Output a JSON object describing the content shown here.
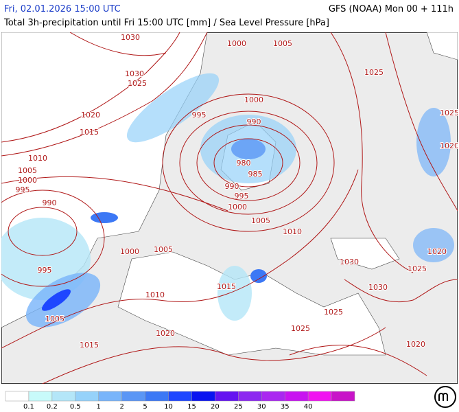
{
  "header": {
    "datetime": "Fri, 02.01.2026 15:00 UTC",
    "model": "GFS (NOAA) Mon 00 + 111h",
    "subtitle": "Total 3h-precipitation until Fri 15:00 UTC [mm] / Sea Level Pressure [hPa]"
  },
  "isobars": {
    "labels": [
      "1030",
      "1000",
      "1005",
      "1030",
      "1025",
      "1025",
      "1000",
      "1020",
      "995",
      "990",
      "1025",
      "1015",
      "1020",
      "1010",
      "980",
      "1005",
      "985",
      "1000",
      "995",
      "990",
      "995",
      "990",
      "1000",
      "1005",
      "1010",
      "1000",
      "1005",
      "1020",
      "1030",
      "995",
      "1025",
      "1015",
      "1030",
      "1010",
      "1025",
      "1005",
      "1025",
      "1020",
      "1015",
      "1020"
    ]
  },
  "legend": {
    "colors": [
      "#ffffff",
      "#c8fafa",
      "#b4e6f8",
      "#96d2fa",
      "#78b4fa",
      "#5a96f5",
      "#3c78f5",
      "#1e46ff",
      "#0a14f0",
      "#6414f0",
      "#8c28f0",
      "#aa28f0",
      "#c814f0",
      "#f014f0",
      "#c814c8"
    ],
    "labels": [
      "0.1",
      "0.2",
      "0.5",
      "1",
      "2",
      "5",
      "10",
      "15",
      "20",
      "25",
      "30",
      "35",
      "40"
    ]
  }
}
